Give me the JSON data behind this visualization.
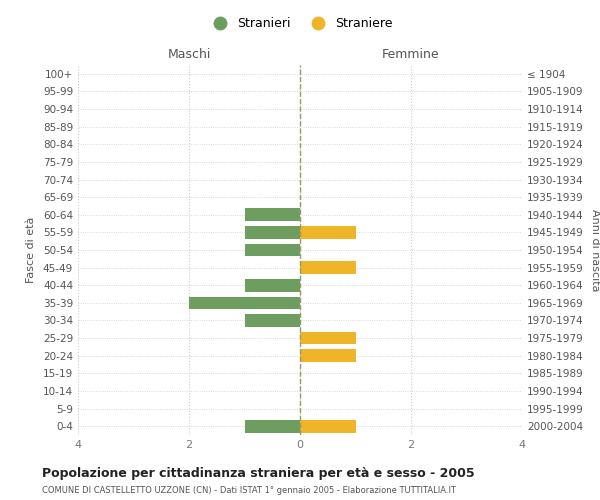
{
  "age_groups": [
    "100+",
    "95-99",
    "90-94",
    "85-89",
    "80-84",
    "75-79",
    "70-74",
    "65-69",
    "60-64",
    "55-59",
    "50-54",
    "45-49",
    "40-44",
    "35-39",
    "30-34",
    "25-29",
    "20-24",
    "15-19",
    "10-14",
    "5-9",
    "0-4"
  ],
  "birth_years": [
    "≤ 1904",
    "1905-1909",
    "1910-1914",
    "1915-1919",
    "1920-1924",
    "1925-1929",
    "1930-1934",
    "1935-1939",
    "1940-1944",
    "1945-1949",
    "1950-1954",
    "1955-1959",
    "1960-1964",
    "1965-1969",
    "1970-1974",
    "1975-1979",
    "1980-1984",
    "1985-1989",
    "1990-1994",
    "1995-1999",
    "2000-2004"
  ],
  "males": [
    0,
    0,
    0,
    0,
    0,
    0,
    0,
    0,
    1,
    1,
    1,
    0,
    1,
    2,
    1,
    0,
    0,
    0,
    0,
    0,
    1
  ],
  "females": [
    0,
    0,
    0,
    0,
    0,
    0,
    0,
    0,
    0,
    1,
    0,
    1,
    0,
    0,
    0,
    1,
    1,
    0,
    0,
    0,
    1
  ],
  "male_color": "#6e9e5f",
  "female_color": "#f0b429",
  "title": "Popolazione per cittadinanza straniera per età e sesso - 2005",
  "subtitle": "COMUNE DI CASTELLETTO UZZONE (CN) - Dati ISTAT 1° gennaio 2005 - Elaborazione TUTTITALIA.IT",
  "xlabel_left": "Maschi",
  "xlabel_right": "Femmine",
  "ylabel_left": "Fasce di età",
  "ylabel_right": "Anni di nascita",
  "legend_male": "Stranieri",
  "legend_female": "Straniere",
  "xlim": 4,
  "background_color": "#ffffff",
  "grid_color": "#cccccc",
  "bar_height": 0.72
}
